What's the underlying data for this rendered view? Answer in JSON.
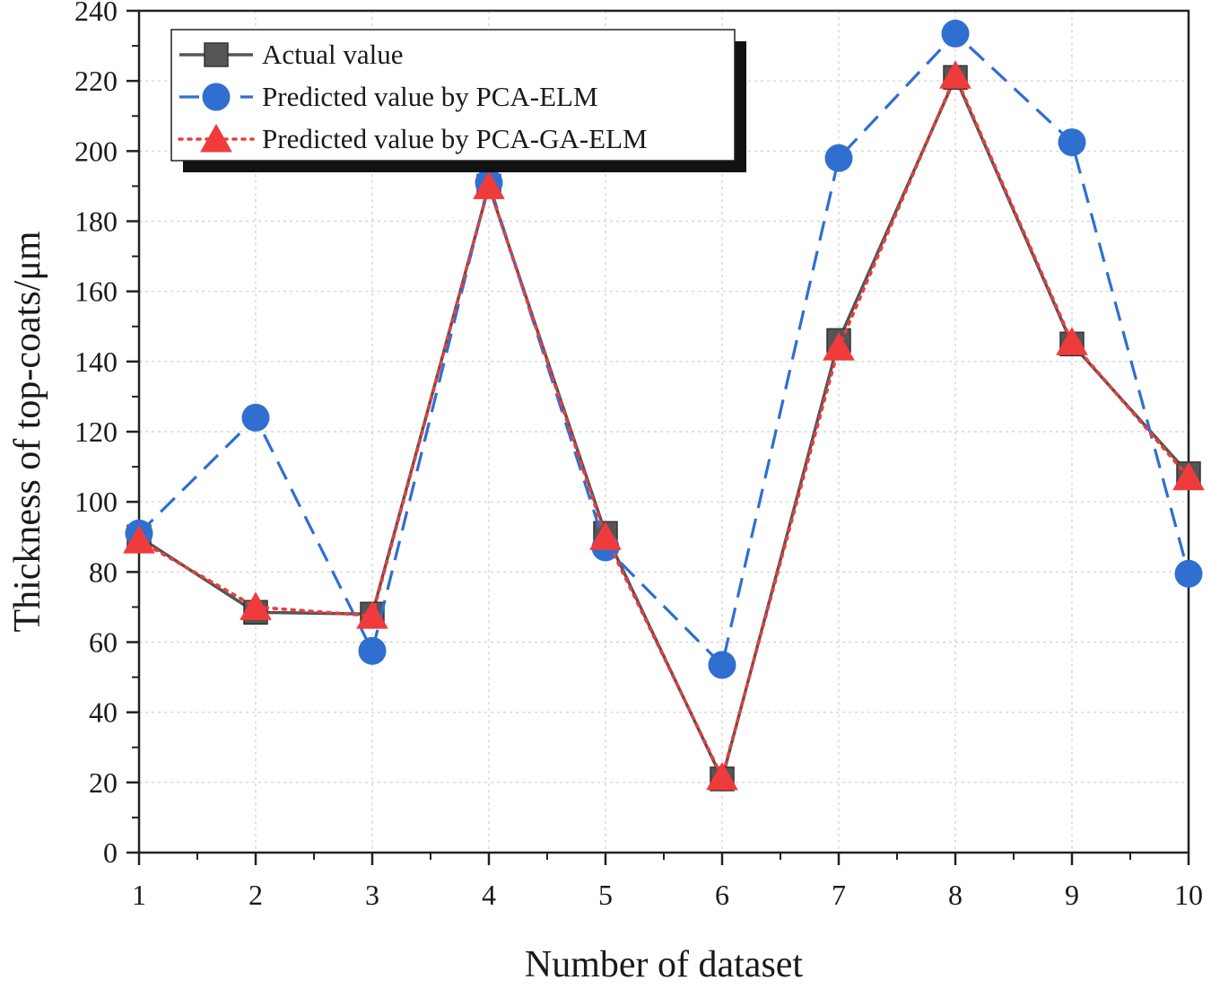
{
  "chart_data": {
    "type": "line",
    "title": "",
    "xlabel": "Number of dataset",
    "ylabel": "Thickness of top-coats/μm",
    "x": [
      1,
      2,
      3,
      4,
      5,
      6,
      7,
      8,
      9,
      10
    ],
    "xlim": [
      1,
      10
    ],
    "ylim": [
      0,
      240
    ],
    "x_ticks": [
      "1",
      "2",
      "3",
      "4",
      "5",
      "6",
      "7",
      "8",
      "9",
      "10"
    ],
    "y_ticks": [
      "0",
      "20",
      "40",
      "60",
      "80",
      "100",
      "120",
      "140",
      "160",
      "180",
      "200",
      "220",
      "240"
    ],
    "grid": true,
    "legend_position": "top-left",
    "series": [
      {
        "name": "Actual value",
        "values": [
          90,
          68.5,
          68,
          190,
          91,
          21,
          146,
          221,
          145,
          108
        ],
        "color": "#555555",
        "line": "solid",
        "marker": "square"
      },
      {
        "name": "Predicted value by PCA-ELM",
        "values": [
          91,
          124,
          57.5,
          191,
          87,
          53.5,
          198,
          233.5,
          202.5,
          79.5
        ],
        "color": "#2f6fd0",
        "line": "dashed",
        "marker": "circle"
      },
      {
        "name": "Predicted value by PCA-GA-ELM",
        "values": [
          89,
          70,
          67.5,
          190,
          90,
          21.5,
          144,
          221.5,
          145.5,
          107
        ],
        "color": "#ef3b3b",
        "line": "dotted",
        "marker": "triangle"
      }
    ]
  }
}
